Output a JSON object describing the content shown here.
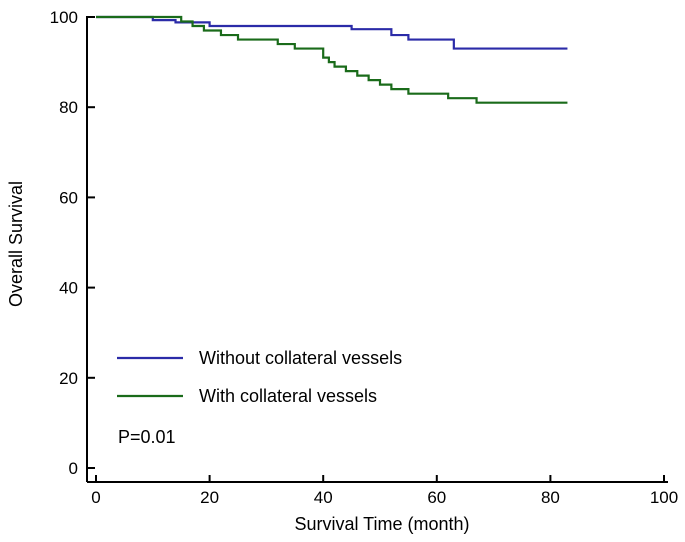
{
  "chart_data": {
    "type": "line",
    "step": true,
    "xlabel": "Survival Time (month)",
    "ylabel": "Overall Survival",
    "xlim": [
      0,
      100
    ],
    "ylim": [
      0,
      100
    ],
    "xticks": [
      0,
      20,
      40,
      60,
      80,
      100
    ],
    "yticks": [
      0,
      20,
      40,
      60,
      80,
      100
    ],
    "grid": false,
    "legend_position": "lower-left",
    "annotation": "P=0.01",
    "series": [
      {
        "name": "Without collateral vessels",
        "color": "#2b2ba8",
        "x": [
          0,
          10,
          14,
          20,
          45,
          52,
          55,
          63,
          83
        ],
        "y": [
          100,
          99.3,
          98.8,
          98,
          97.3,
          96,
          95,
          93,
          93
        ]
      },
      {
        "name": "With collateral vessels",
        "color": "#1a6b1a",
        "x": [
          0,
          15,
          17,
          19,
          22,
          25,
          32,
          35,
          40,
          41,
          42,
          44,
          46,
          48,
          50,
          52,
          55,
          62,
          67,
          83
        ],
        "y": [
          100,
          99,
          98,
          97,
          96,
          95,
          94,
          93,
          91,
          90,
          89,
          88,
          87,
          86,
          85,
          84,
          83,
          82,
          81,
          81
        ]
      }
    ]
  }
}
